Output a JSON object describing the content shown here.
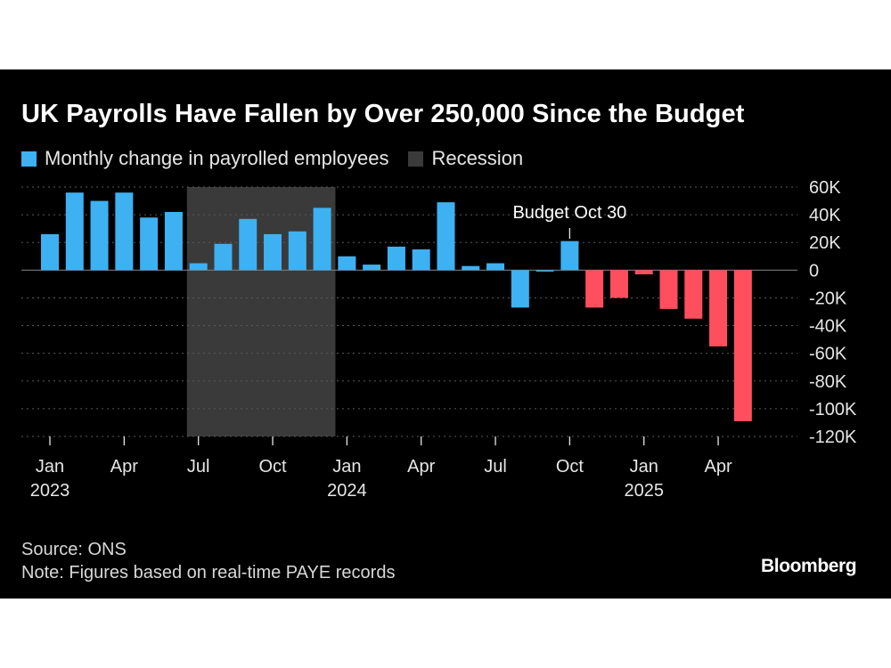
{
  "title": "UK Payrolls Have Fallen by Over 250,000 Since the Budget",
  "legend": {
    "series_label": "Monthly change in payrolled employees",
    "recession_label": "Recession"
  },
  "colors": {
    "background": "#000000",
    "positive": "#3db1f2",
    "negative": "#ff4f5e",
    "recession": "#3a3a3a",
    "grid": "#5a5a5a",
    "zero_line": "#7a7a7a",
    "text": "#e6e6e6"
  },
  "source": "Source: ONS",
  "note": "Note: Figures based on real-time PAYE records",
  "brand": "Bloomberg",
  "chart_data": {
    "type": "bar",
    "title": "UK Payrolls Have Fallen by Over 250,000 Since the Budget",
    "xlabel": "",
    "ylabel": "",
    "ylim": [
      -120000,
      60000
    ],
    "yticks": [
      60000,
      40000,
      20000,
      0,
      -20000,
      -40000,
      -60000,
      -80000,
      -100000,
      -120000
    ],
    "ytick_labels": [
      "60K",
      "40K",
      "20K",
      "0",
      "-20K",
      "-40K",
      "-60K",
      "-80K",
      "-100K",
      "-120K"
    ],
    "grid": true,
    "y_axis_side": "right",
    "categories": [
      "2023-01",
      "2023-02",
      "2023-03",
      "2023-04",
      "2023-05",
      "2023-06",
      "2023-07",
      "2023-08",
      "2023-09",
      "2023-10",
      "2023-11",
      "2023-12",
      "2024-01",
      "2024-02",
      "2024-03",
      "2024-04",
      "2024-05",
      "2024-06",
      "2024-07",
      "2024-08",
      "2024-09",
      "2024-10",
      "2024-11",
      "2024-12",
      "2025-01",
      "2025-02",
      "2025-03",
      "2025-04",
      "2025-05"
    ],
    "values": [
      26000,
      56000,
      50000,
      56000,
      38000,
      42000,
      5000,
      19000,
      37000,
      26000,
      28000,
      45000,
      10000,
      4000,
      17000,
      15000,
      49000,
      3000,
      5000,
      -27000,
      -1000,
      21000,
      -27000,
      -20000,
      -3000,
      -28000,
      -35000,
      -55000,
      -109000
    ],
    "series": [
      {
        "name": "Monthly change in payrolled employees"
      }
    ],
    "x_ticks": [
      {
        "index": 0,
        "label": "Jan",
        "year": "2023"
      },
      {
        "index": 3,
        "label": "Apr",
        "year": ""
      },
      {
        "index": 6,
        "label": "Jul",
        "year": ""
      },
      {
        "index": 9,
        "label": "Oct",
        "year": ""
      },
      {
        "index": 12,
        "label": "Jan",
        "year": "2024"
      },
      {
        "index": 15,
        "label": "Apr",
        "year": ""
      },
      {
        "index": 18,
        "label": "Jul",
        "year": ""
      },
      {
        "index": 21,
        "label": "Oct",
        "year": ""
      },
      {
        "index": 24,
        "label": "Jan",
        "year": "2025"
      },
      {
        "index": 27,
        "label": "Apr",
        "year": ""
      }
    ],
    "shaded_regions": [
      {
        "label": "Recession",
        "start_index": 6,
        "end_index": 11
      }
    ],
    "annotations": [
      {
        "text": "Budget Oct 30",
        "index": 21
      }
    ]
  }
}
